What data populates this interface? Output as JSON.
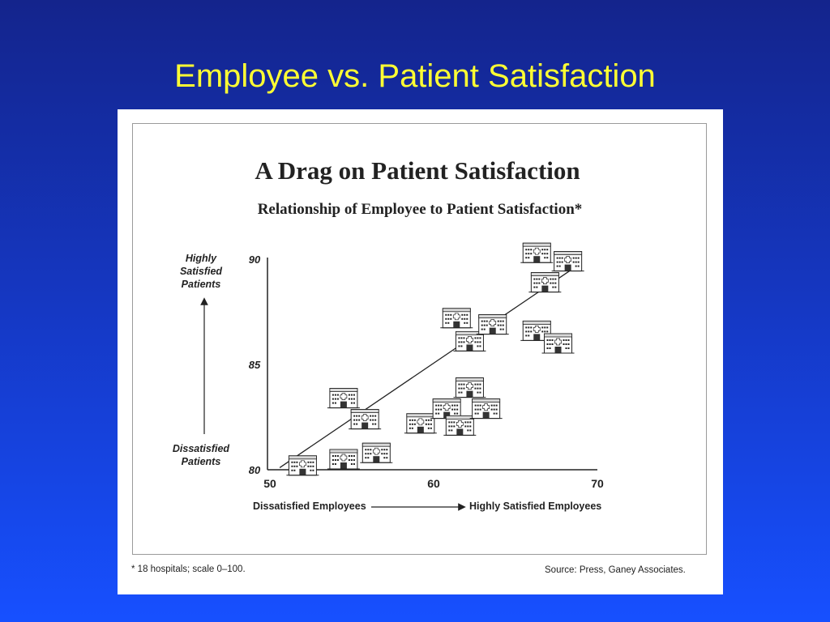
{
  "slide": {
    "title": "Employee vs. Patient Satisfaction"
  },
  "chart_data": {
    "type": "scatter",
    "title": "A Drag on Patient Satisfaction",
    "subtitle": "Relationship of Employee to Patient Satisfaction*",
    "y_axis_label_high": [
      "Highly",
      "Satisfied",
      "Patients"
    ],
    "y_axis_label_low": [
      "Dissatisfied",
      "Patients"
    ],
    "x_axis_label_low": "Dissatisfied Employees",
    "x_axis_label_high": "Highly Satisfied Employees",
    "xlim": [
      50,
      70
    ],
    "ylim": [
      80,
      90
    ],
    "x_ticks": [
      50,
      60,
      70
    ],
    "y_ticks": [
      80,
      85,
      90
    ],
    "marker": "hospital-building-icon",
    "points": [
      {
        "x": 52.0,
        "y": 80.2
      },
      {
        "x": 54.5,
        "y": 80.5
      },
      {
        "x": 56.5,
        "y": 80.8
      },
      {
        "x": 54.5,
        "y": 83.4
      },
      {
        "x": 55.8,
        "y": 82.4
      },
      {
        "x": 59.2,
        "y": 82.2
      },
      {
        "x": 60.8,
        "y": 82.9
      },
      {
        "x": 61.6,
        "y": 82.1
      },
      {
        "x": 62.2,
        "y": 83.9
      },
      {
        "x": 63.2,
        "y": 82.9
      },
      {
        "x": 61.4,
        "y": 87.2
      },
      {
        "x": 62.2,
        "y": 86.1
      },
      {
        "x": 63.6,
        "y": 86.9
      },
      {
        "x": 66.3,
        "y": 86.6
      },
      {
        "x": 67.6,
        "y": 86.0
      },
      {
        "x": 66.8,
        "y": 88.9
      },
      {
        "x": 66.3,
        "y": 90.3
      },
      {
        "x": 68.2,
        "y": 89.9
      }
    ],
    "trend_line": {
      "x": [
        50.6,
        68.6
      ],
      "y": [
        80.1,
        89.6
      ]
    },
    "footnote": "*  18 hospitals; scale 0–100.",
    "source": "Source:  Press, Ganey Associates."
  }
}
